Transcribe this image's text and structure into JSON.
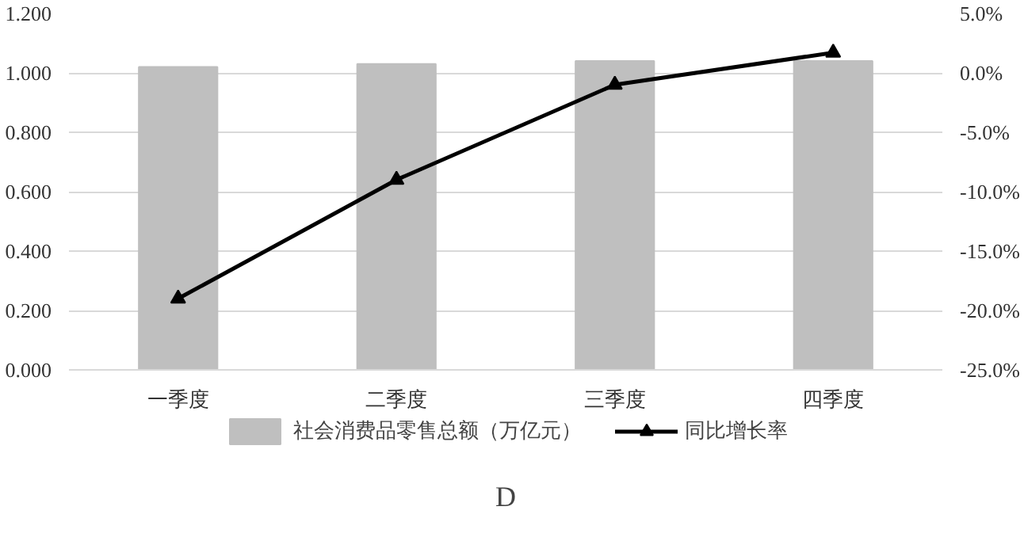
{
  "chart_data": {
    "type": "bar",
    "categories": [
      "一季度",
      "二季度",
      "三季度",
      "四季度"
    ],
    "series": [
      {
        "name": "社会消费品零售总额（万亿元）",
        "color": "#bfbfbf",
        "values": [
          1.02,
          1.03,
          1.04,
          1.04
        ]
      },
      {
        "name": "同比增长率",
        "type": "line",
        "axis": "y2",
        "color": "#000000",
        "values": [
          -19.0,
          -9.0,
          -1.0,
          1.7
        ],
        "marker": "triangle"
      }
    ],
    "ylim": [
      0,
      1.2
    ],
    "yticks": [
      {
        "value": 0,
        "label": "0.000"
      },
      {
        "value": 0.2,
        "label": "0.200"
      },
      {
        "value": 0.4,
        "label": "0.400"
      },
      {
        "value": 0.6,
        "label": "0.600"
      },
      {
        "value": 0.8,
        "label": "0.800"
      },
      {
        "value": 1.0,
        "label": "1.000"
      },
      {
        "value": 1.2,
        "label": "1.200"
      }
    ],
    "y2lim": [
      -25,
      5
    ],
    "y2ticks": [
      {
        "value": -25,
        "label": "-25.0%"
      },
      {
        "value": -20,
        "label": "-20.0%"
      },
      {
        "value": -15,
        "label": "-15.0%"
      },
      {
        "value": -10,
        "label": "-10.0%"
      },
      {
        "value": -5,
        "label": "-5.0%"
      },
      {
        "value": 0,
        "label": "0.0%"
      },
      {
        "value": 5,
        "label": "5.0%"
      }
    ],
    "grid": "y",
    "legend": "bottom",
    "annotations": [
      "D"
    ]
  }
}
